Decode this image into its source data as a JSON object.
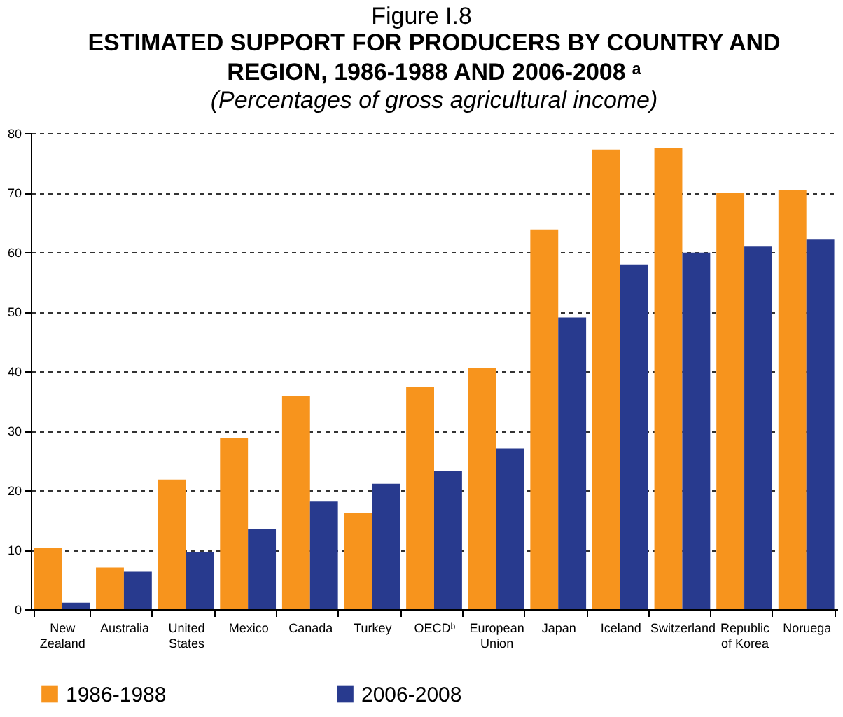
{
  "chart_data": {
    "type": "bar",
    "title": "ESTIMATED SUPPORT FOR PRODUCERS BY COUNTRY AND REGION, 1986-1988 AND 2006-2008 ᵃ",
    "subtitle": "(Percentages of gross agricultural income)",
    "annotations": [
      "Figure I.8"
    ],
    "categories": [
      "New Zealand",
      "Australia",
      "United States",
      "Mexico",
      "Canada",
      "Turkey",
      "OECDᵇ",
      "European Union",
      "Japan",
      "Iceland",
      "Switzerland",
      "Republic of Korea",
      "Noruega"
    ],
    "series": [
      {
        "name": "1986-1988",
        "color": "#f7941d",
        "values": [
          10.3,
          7.0,
          21.8,
          28.7,
          35.8,
          16.2,
          37.3,
          40.5,
          63.8,
          77.2,
          77.4,
          69.9,
          70.4
        ]
      },
      {
        "name": "2006-2008",
        "color": "#283a8e",
        "values": [
          1.1,
          6.3,
          9.6,
          13.5,
          18.1,
          21.1,
          23.3,
          27.0,
          49.0,
          57.9,
          59.9,
          60.9,
          62.1
        ]
      }
    ],
    "ylim": [
      0,
      80
    ],
    "yticks": [
      0,
      10,
      20,
      30,
      40,
      50,
      60,
      70,
      80
    ],
    "grid": "y",
    "legend": "bottom"
  }
}
